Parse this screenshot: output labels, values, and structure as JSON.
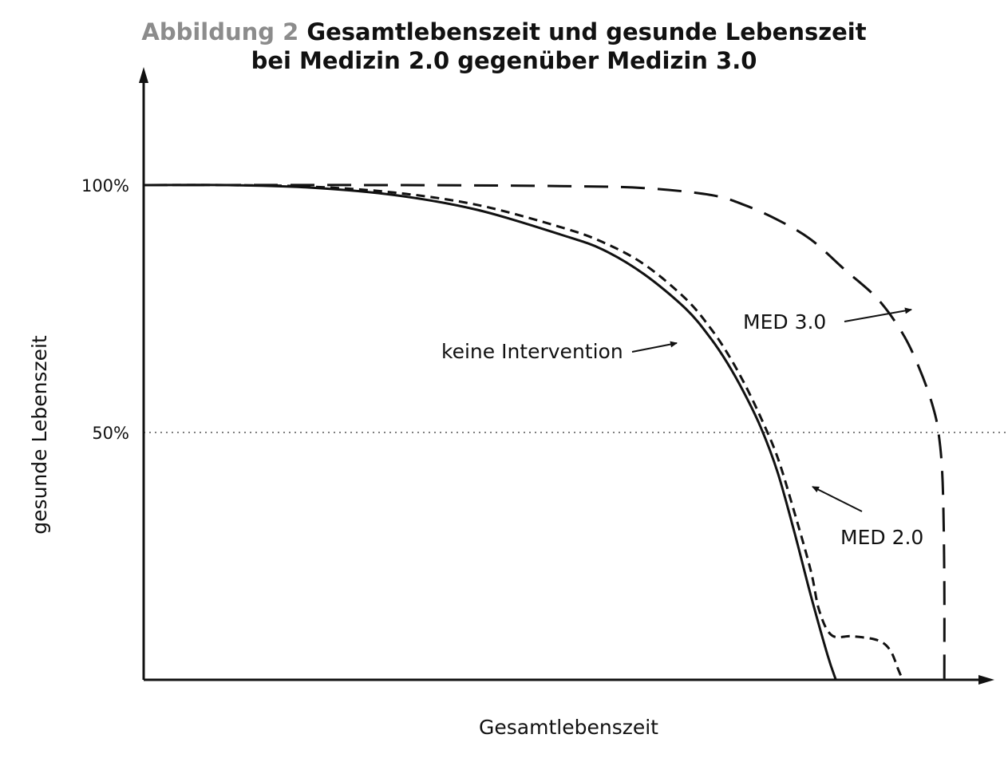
{
  "figure_label": "Abbildung 2",
  "title": "Gesamtlebenszeit und gesunde Lebenszeit",
  "subtitle": "bei Medizin 2.0 gegenüber Medizin 3.0",
  "colors": {
    "ink": "#111111",
    "label_gray": "#8c8c8c",
    "reference_line": "#7f7f7f"
  },
  "chart_data": {
    "type": "line",
    "title": "Gesamtlebenszeit und gesunde Lebenszeit bei Medizin 2.0 gegenüber Medizin 3.0",
    "xlabel": "Gesamtlebenszeit",
    "ylabel": "gesunde Lebenszeit",
    "ylim": [
      0,
      120
    ],
    "yticks": [
      {
        "value": 50,
        "label": "50%"
      },
      {
        "value": 100,
        "label": "100%"
      }
    ],
    "xlim": [
      0,
      100
    ],
    "grid": false,
    "reference_lines": [
      {
        "axis": "y",
        "value": 50,
        "style": "dotted"
      }
    ],
    "series": [
      {
        "name": "keine Intervention",
        "style": "solid",
        "points": [
          [
            0,
            100
          ],
          [
            10,
            100
          ],
          [
            20,
            99.5
          ],
          [
            30,
            98
          ],
          [
            40,
            95
          ],
          [
            50,
            90
          ],
          [
            55,
            87
          ],
          [
            60,
            82
          ],
          [
            65,
            75
          ],
          [
            68,
            69
          ],
          [
            70,
            64
          ],
          [
            72,
            58
          ],
          [
            74,
            51
          ],
          [
            76,
            42
          ],
          [
            78,
            30
          ],
          [
            80,
            17
          ],
          [
            82,
            5
          ],
          [
            83,
            0
          ]
        ]
      },
      {
        "name": "MED 2.0",
        "style": "dashed",
        "points": [
          [
            0,
            100
          ],
          [
            10,
            100
          ],
          [
            20,
            99.7
          ],
          [
            30,
            98.5
          ],
          [
            40,
            96
          ],
          [
            50,
            91.5
          ],
          [
            55,
            88.5
          ],
          [
            60,
            84
          ],
          [
            65,
            77
          ],
          [
            68,
            71
          ],
          [
            70,
            66
          ],
          [
            72,
            60
          ],
          [
            74,
            53
          ],
          [
            76,
            45
          ],
          [
            78,
            34
          ],
          [
            80,
            22
          ],
          [
            81,
            14
          ],
          [
            82.5,
            9
          ],
          [
            85,
            8.8
          ],
          [
            88,
            8
          ],
          [
            89.5,
            6
          ],
          [
            90.5,
            2
          ],
          [
            91,
            0
          ]
        ]
      },
      {
        "name": "MED 3.0",
        "style": "long-dashed",
        "points": [
          [
            0,
            100
          ],
          [
            30,
            100
          ],
          [
            50,
            99.8
          ],
          [
            60,
            99.4
          ],
          [
            68,
            98
          ],
          [
            72,
            96
          ],
          [
            76,
            93
          ],
          [
            80,
            89
          ],
          [
            84,
            83
          ],
          [
            88,
            77
          ],
          [
            91,
            70
          ],
          [
            93,
            63
          ],
          [
            94.5,
            56
          ],
          [
            95.3,
            50
          ],
          [
            95.8,
            40
          ],
          [
            96,
            20
          ],
          [
            96,
            0
          ]
        ]
      }
    ],
    "annotations": [
      {
        "text": "keine Intervention",
        "points_to": "keine Intervention"
      },
      {
        "text": "MED 3.0",
        "points_to": "MED 3.0"
      },
      {
        "text": "MED 2.0",
        "points_to": "MED 2.0"
      }
    ]
  }
}
